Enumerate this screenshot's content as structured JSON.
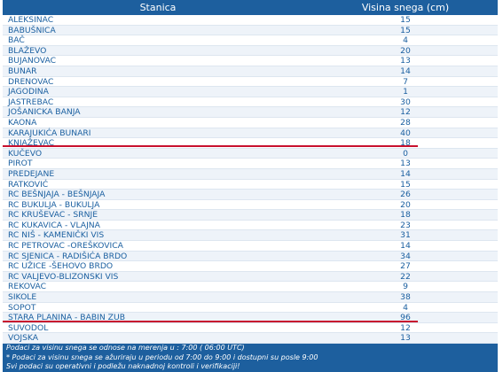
{
  "table": {
    "header": [
      "Stanica",
      "Visina snega (cm)"
    ],
    "rows": [
      [
        "ALEKSINAC",
        15
      ],
      [
        "BABUŠNICA",
        15
      ],
      [
        "BAČ",
        4
      ],
      [
        "BLAŽEVO",
        20
      ],
      [
        "BUJANOVAC",
        13
      ],
      [
        "BUNAR",
        14
      ],
      [
        "DRENOVAC",
        7
      ],
      [
        "JAGODINA",
        1
      ],
      [
        "JASTREBAC",
        30
      ],
      [
        "JOŠANICKA BANJA",
        12
      ],
      [
        "KAONA",
        28
      ],
      [
        "KARAJUKIĆA BUNARI",
        40
      ],
      [
        "KNJAŽEVAC",
        18
      ],
      [
        "KUČEVO",
        0
      ],
      [
        "PIROT",
        13
      ],
      [
        "PREDEJANE",
        14
      ],
      [
        "RATKOVIĆ",
        15
      ],
      [
        "RC BEŠNJAJA - BEŠNJAJA",
        26
      ],
      [
        "RC BUKULJA - BUKULJA",
        20
      ],
      [
        "RC KRUŠEVAC - SRNJE",
        18
      ],
      [
        "RC KUKAVICA - VLAJNA",
        23
      ],
      [
        "RC NIŠ - KAMENIČKI VIS",
        31
      ],
      [
        "RC PETROVAC -OREŠKOVICA",
        14
      ],
      [
        "RC SJENICA - RADIŠIĆA BRDO",
        34
      ],
      [
        "RC UŽICE -ŠEHOVO BRDO",
        27
      ],
      [
        "RC VALJEVO-BLIZONSKI VIS",
        22
      ],
      [
        "REKOVAC",
        9
      ],
      [
        "SIKOLE",
        38
      ],
      [
        "SOPOT",
        4
      ],
      [
        "STARA PLANINA - BABIN ZUB",
        96
      ],
      [
        "SUVODOL",
        12
      ],
      [
        "VOJSKA",
        13
      ]
    ],
    "footer": [
      "Podaci za visinu snega se odnose na merenja u : 7:00 ( 06:00 UTC)",
      "* Podaci za visinu snega se ažuriraju u periodu od 7:00 do 9:00 i dostupni su posle 9:00",
      "Svi podaci su operativni i podležu naknadnoj kontroli i verifikaciji!"
    ]
  }
}
